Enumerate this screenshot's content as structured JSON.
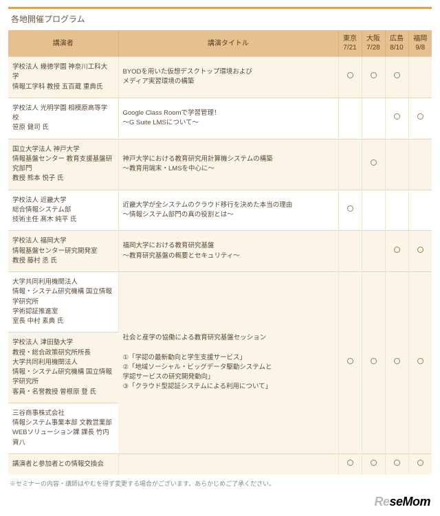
{
  "title": "各地開催プログラム",
  "headers": {
    "speaker": "講演者",
    "talk": "講演タイトル",
    "locs": [
      {
        "city": "東京",
        "date": "7/21"
      },
      {
        "city": "大阪",
        "date": "7/28"
      },
      {
        "city": "広島",
        "date": "8/10"
      },
      {
        "city": "福岡",
        "date": "9/8"
      }
    ]
  },
  "rows": [
    {
      "speaker": "学校法人 幾徳学園 神奈川工科大学\n情報工学科 教授 五百蔵 重典氏",
      "talk": "BYODを用いた仮想デスクトップ環境および\nメディア実習環境の構築",
      "marks": [
        1,
        1,
        1,
        0
      ],
      "alt": 1
    },
    {
      "speaker": "学校法人 光明学園 相模原高等学校\n笹原 健司 氏",
      "talk": "Google Class Roomで学習管理！\n～G Suite LMSについて～",
      "marks": [
        0,
        0,
        1,
        1
      ],
      "alt": 0
    },
    {
      "speaker": "国立大学法人 神戸大学\n情報基盤センター 教育支援基盤研究部門\n教授 熊本 悦子 氏",
      "talk": "神戸大学における教育研究用計算機システムの構築\n～教育用端末・LMSを中心に～",
      "marks": [
        0,
        1,
        0,
        0
      ],
      "alt": 1
    },
    {
      "speaker": "学校法人 近畿大学\n総合情報システム部\n技術主任 髙木 純平 氏",
      "talk": "近畿大学が全システムのクラウド移行を決めた本当の理由\n～情報システム部門の真の役割とは～",
      "marks": [
        1,
        0,
        0,
        0
      ],
      "alt": 0
    },
    {
      "speaker": "学校法人 福岡大学\n情報基盤センター研究開発室\n教授 藤村 丞 氏",
      "talk": "福岡大学における教育研究基盤\n～教育研究基盤の概要とセキュリティ～",
      "marks": [
        0,
        0,
        1,
        1
      ],
      "alt": 1
    }
  ],
  "merged": {
    "speakers": [
      "大学共同利用機関法人\n情報・システム研究機構 国立情報学研究所\n学術認証推進室\n室長 中村 素典 氏",
      "学校法人 津田塾大学\n教授・総合政策研究所所長\n大学共同利用機関法人\n情報・システム研究機構 国立情報学研究所\n客員・名誉教授 曽根原 登 氏",
      "三谷商事株式会社\n情報システム事業本部 文教営業部\nWEBソリューション課 課長 竹内 資八"
    ],
    "talk": "社会と産学の協働による教育研究基盤セッション\n\n①「学認の最新動向と学生支援サービス」\n②「地域ソーシャル・ビッグデータ駆動システムと\n学認サービスの研究開発動向」\n③「クラウド型認証システムによる利用について」",
    "marks": [
      1,
      1,
      1,
      1
    ],
    "alts": [
      0,
      1,
      0
    ]
  },
  "lastRow": {
    "speaker": "講演者と参加者との情報交換会",
    "talk": "",
    "marks": [
      1,
      1,
      1,
      1
    ],
    "alt": 1
  },
  "footnote": "※セミナーの内容・講師はやむを得ず変更する場合がございます。あらかじめご了承ください。",
  "brand": {
    "re": "Re",
    "se": "seMom"
  }
}
